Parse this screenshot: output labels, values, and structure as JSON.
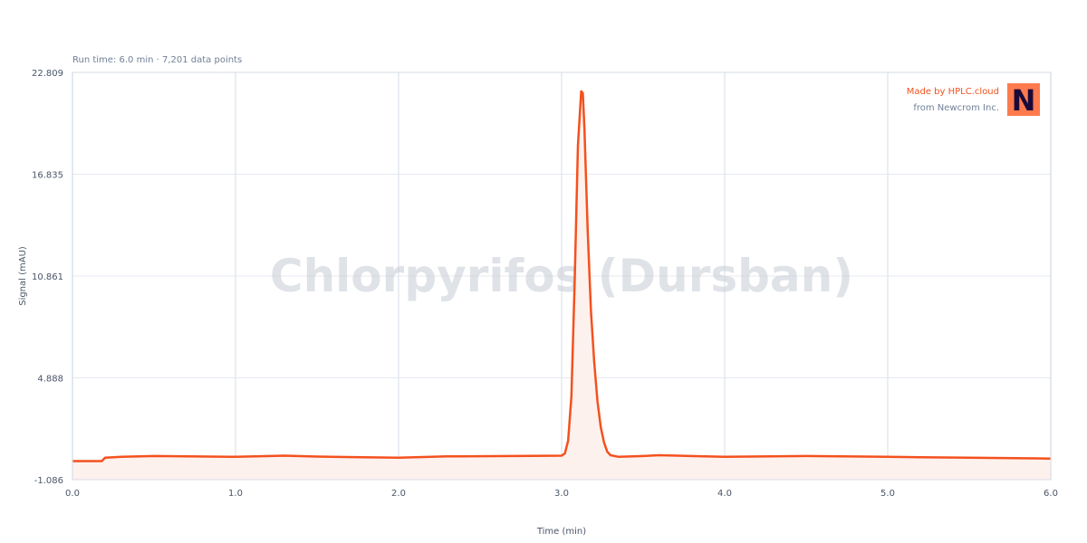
{
  "chart_data": {
    "type": "line",
    "subtitle": "Run time: 6.0 min · 7,201 data points",
    "watermark": "Chlorpyrifos (Dursban)",
    "xlabel": "Time (min)",
    "ylabel": "Signal (mAU)",
    "xlim": [
      0,
      6
    ],
    "ylim": [
      -1.086,
      22.809
    ],
    "xticks": [
      "0.0",
      "1.0",
      "2.0",
      "3.0",
      "4.0",
      "5.0",
      "6.0"
    ],
    "xtick_values": [
      0,
      1,
      2,
      3,
      4,
      5,
      6
    ],
    "yticks": [
      "-1.086",
      "4.888",
      "10.861",
      "16.835",
      "22.809"
    ],
    "ytick_values": [
      -1.086,
      4.888,
      10.861,
      16.835,
      22.809
    ],
    "grid": true,
    "line_color": "#f4511e",
    "fill_color": "#fdf1ee",
    "series": [
      {
        "x": [
          0.0,
          0.18,
          0.2,
          0.3,
          0.5,
          1.0,
          1.3,
          1.5,
          2.0,
          2.3,
          2.7,
          3.0,
          3.02,
          3.04,
          3.06,
          3.08,
          3.1,
          3.12,
          3.13,
          3.14,
          3.16,
          3.18,
          3.2,
          3.22,
          3.24,
          3.26,
          3.28,
          3.3,
          3.35,
          3.5,
          3.6,
          4.0,
          4.5,
          5.0,
          5.5,
          6.0
        ],
        "y": [
          0.0,
          0.0,
          0.2,
          0.26,
          0.3,
          0.25,
          0.32,
          0.27,
          0.2,
          0.28,
          0.3,
          0.32,
          0.45,
          1.2,
          3.8,
          10.5,
          18.5,
          21.7,
          21.6,
          19.5,
          13.5,
          8.8,
          5.8,
          3.5,
          2.0,
          1.1,
          0.55,
          0.35,
          0.25,
          0.3,
          0.35,
          0.25,
          0.3,
          0.25,
          0.2,
          0.15
        ]
      }
    ]
  },
  "credit": {
    "line1": "Made by HPLC.cloud",
    "line2": "from Newcrom Inc.",
    "logo_letter": "N",
    "logo_bg": "#ff7a4d",
    "logo_fg": "#1a0a3a"
  }
}
